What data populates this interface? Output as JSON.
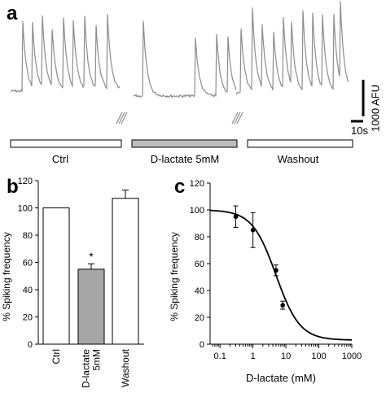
{
  "panels": {
    "a": {
      "letter": "a"
    },
    "b": {
      "letter": "b"
    },
    "c": {
      "letter": "c"
    }
  },
  "traces": {
    "color": "#8c8c8c",
    "scale_amplitude": "1000 AFU",
    "scale_time": "10s",
    "conditions": [
      {
        "label": "Ctrl",
        "fill": "#ffffff"
      },
      {
        "label": "D-lactate 5mM",
        "fill": "#bdbdbd"
      },
      {
        "label": "Washout",
        "fill": "#ffffff"
      }
    ]
  },
  "chart_data": [
    {
      "type": "bar",
      "panel": "b",
      "ylabel": "% Spiking frequency",
      "ylim": [
        0,
        120
      ],
      "yticks": [
        0,
        20,
        40,
        60,
        80,
        100,
        120
      ],
      "categories": [
        "Ctrl",
        "D-lactate\n5mM",
        "Washout"
      ],
      "values": [
        100,
        55,
        107
      ],
      "errors": [
        0,
        4,
        6
      ],
      "colors": [
        "#ffffff",
        "#a6a6a6",
        "#ffffff"
      ],
      "annotations": [
        {
          "category_index": 1,
          "text": "*"
        }
      ],
      "grid": false
    },
    {
      "type": "line",
      "panel": "c",
      "xlabel": "D-lactate (mM)",
      "ylabel": "% Spiking frequency",
      "xscale": "log",
      "xlim": [
        0.05,
        1000
      ],
      "ylim": [
        0,
        120
      ],
      "xticks": [
        0.1,
        1,
        10,
        100,
        1000
      ],
      "xtick_labels": [
        "0.1",
        "1",
        "10",
        "100",
        "1000"
      ],
      "yticks": [
        0,
        20,
        40,
        60,
        80,
        100,
        120
      ],
      "series": [
        {
          "kind": "points",
          "x": [
            0.3,
            1,
            5,
            8
          ],
          "y": [
            95,
            85,
            55,
            29
          ],
          "err": [
            8,
            13,
            4,
            3
          ]
        },
        {
          "kind": "fit",
          "model": "logistic",
          "top": 100,
          "bottom": 3,
          "ec50": 5,
          "hill": 1.2
        }
      ],
      "grid": false
    }
  ]
}
